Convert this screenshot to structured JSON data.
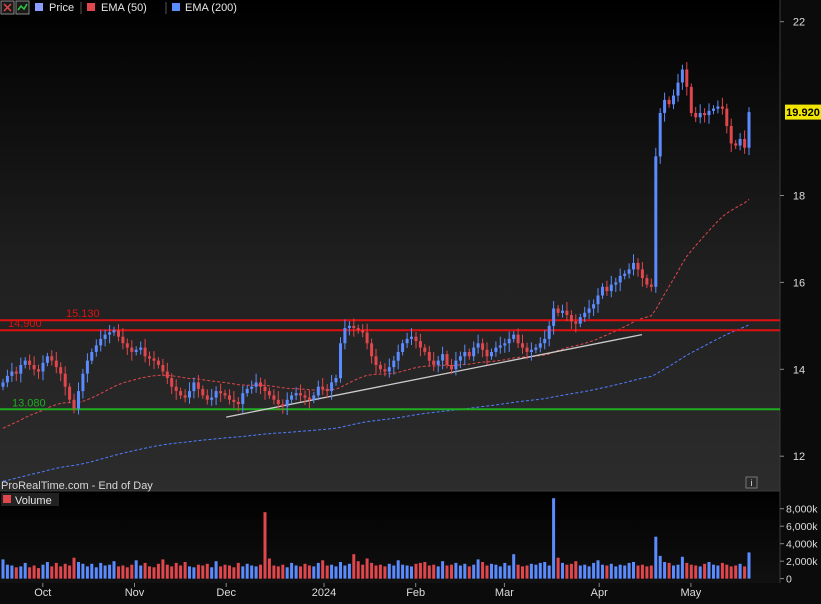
{
  "chart_data": [
    {
      "type": "candlestick",
      "panel": "price",
      "legend": {
        "price_label": "Price",
        "ema50_label": "EMA (50)",
        "ema200_label": "EMA (200)"
      },
      "colors": {
        "up": "#5b8cff",
        "down": "#e0474c",
        "ema50": "#e0474c",
        "ema200": "#4f7dff",
        "resistance": "#e01010",
        "support": "#1fae1f",
        "trendline": "#cccccc",
        "price_tag": "#f2e600"
      },
      "ylim": [
        11.2,
        22.5
      ],
      "yticks": [
        "12",
        "14",
        "16",
        "18",
        "22"
      ],
      "last_price": "19.920",
      "levels": [
        {
          "label": "15.130",
          "value": 15.13,
          "color": "#e01010"
        },
        {
          "label": "14.900",
          "value": 14.9,
          "color": "#e01010"
        },
        {
          "label": "13.080",
          "value": 13.08,
          "color": "#1fae1f"
        }
      ],
      "trendline": {
        "from": [
          "2023-12-01",
          12.9
        ],
        "to": [
          "2024-04-15",
          14.8
        ]
      },
      "x_axis": {
        "start": "2023-09-18",
        "end": "2024-05-21",
        "labels": [
          {
            "text": "Oct",
            "date": "2023-10-02"
          },
          {
            "text": "Nov",
            "date": "2023-11-01"
          },
          {
            "text": "Dec",
            "date": "2023-12-01"
          },
          {
            "text": "2024",
            "date": "2024-01-02"
          },
          {
            "text": "Feb",
            "date": "2024-02-01"
          },
          {
            "text": "Mar",
            "date": "2024-03-01"
          },
          {
            "text": "Apr",
            "date": "2024-04-01"
          },
          {
            "text": "May",
            "date": "2024-05-01"
          }
        ]
      },
      "closes": [
        13.7,
        13.85,
        13.95,
        13.9,
        14.1,
        14.2,
        14.1,
        14.0,
        13.95,
        14.15,
        14.3,
        14.2,
        14.05,
        13.9,
        13.6,
        13.3,
        13.1,
        13.5,
        13.9,
        14.2,
        14.4,
        14.55,
        14.7,
        14.8,
        14.85,
        14.9,
        14.75,
        14.6,
        14.5,
        14.4,
        14.45,
        14.5,
        14.3,
        14.25,
        14.2,
        14.1,
        13.95,
        13.8,
        13.6,
        13.5,
        13.4,
        13.35,
        13.5,
        13.7,
        13.55,
        13.4,
        13.3,
        13.35,
        13.5,
        13.45,
        13.4,
        13.3,
        13.25,
        13.2,
        13.45,
        13.55,
        13.6,
        13.7,
        13.6,
        13.5,
        13.4,
        13.3,
        13.2,
        13.15,
        13.3,
        13.4,
        13.45,
        13.4,
        13.35,
        13.3,
        13.4,
        13.6,
        13.55,
        13.5,
        13.7,
        13.8,
        14.6,
        14.95,
        15.0,
        14.95,
        14.9,
        14.85,
        14.6,
        14.3,
        14.1,
        14.0,
        13.95,
        14.05,
        14.2,
        14.4,
        14.6,
        14.7,
        14.75,
        14.65,
        14.5,
        14.4,
        14.2,
        14.1,
        14.2,
        14.35,
        14.1,
        14.0,
        14.2,
        14.3,
        14.4,
        14.3,
        14.5,
        14.6,
        14.45,
        14.3,
        14.4,
        14.5,
        14.55,
        14.6,
        14.7,
        14.8,
        14.6,
        14.5,
        14.4,
        14.45,
        14.5,
        14.6,
        14.7,
        15.0,
        15.4,
        15.3,
        15.35,
        15.25,
        15.1,
        15.05,
        15.2,
        15.3,
        15.4,
        15.5,
        15.7,
        15.9,
        15.8,
        15.95,
        16.0,
        16.15,
        16.2,
        16.3,
        16.45,
        16.3,
        16.1,
        15.95,
        15.9,
        18.9,
        19.9,
        20.2,
        20.1,
        20.3,
        20.6,
        20.9,
        20.5,
        19.9,
        19.8,
        19.9,
        19.85,
        19.95,
        20.0,
        20.05,
        20.0,
        19.6,
        19.2,
        19.15,
        19.3,
        19.1,
        19.92
      ],
      "volumes": [
        2.2,
        1.6,
        1.5,
        1.3,
        1.4,
        1.8,
        1.3,
        1.5,
        1.2,
        1.6,
        1.9,
        1.4,
        1.8,
        1.4,
        1.7,
        1.5,
        2.4,
        1.9,
        1.7,
        1.4,
        1.7,
        1.3,
        1.8,
        1.5,
        1.6,
        2.0,
        1.4,
        1.5,
        1.3,
        1.6,
        2.1,
        1.5,
        1.8,
        1.4,
        1.3,
        1.7,
        2.2,
        1.6,
        1.4,
        1.8,
        1.5,
        1.9,
        1.4,
        1.3,
        1.6,
        1.5,
        1.7,
        1.3,
        2.0,
        1.4,
        1.6,
        1.5,
        1.3,
        1.8,
        1.4,
        1.7,
        1.5,
        1.4,
        1.6,
        7.6,
        2.3,
        1.5,
        1.4,
        1.6,
        1.3,
        1.8,
        1.5,
        1.4,
        1.7,
        1.5,
        1.4,
        1.8,
        2.1,
        1.5,
        1.6,
        1.4,
        1.9,
        1.5,
        1.7,
        2.8,
        2.0,
        1.6,
        2.3,
        1.8,
        1.5,
        1.6,
        1.4,
        1.7,
        1.5,
        2.1,
        1.6,
        1.5,
        1.4,
        1.7,
        1.8,
        1.9,
        1.5,
        1.6,
        1.4,
        2.0,
        1.5,
        1.6,
        1.8,
        1.5,
        1.7,
        1.4,
        1.6,
        2.2,
        1.9,
        1.5,
        1.7,
        1.6,
        1.4,
        1.8,
        1.5,
        2.8,
        1.6,
        1.4,
        1.5,
        1.7,
        1.6,
        1.8,
        1.9,
        1.5,
        9.2,
        2.4,
        1.8,
        1.6,
        1.7,
        2.0,
        1.5,
        1.6,
        1.4,
        1.8,
        2.1,
        1.6,
        1.5,
        1.7,
        1.4,
        1.6,
        1.5,
        1.8,
        1.9,
        1.5,
        1.6,
        1.4,
        1.5,
        4.8,
        2.6,
        1.9,
        1.8,
        1.5,
        1.6,
        2.5,
        1.8,
        1.6,
        1.5,
        1.4,
        1.7,
        1.9,
        1.6,
        1.5,
        1.8,
        1.6,
        1.4,
        1.5,
        1.7,
        1.4,
        3.0
      ]
    },
    {
      "type": "bar",
      "panel": "volume",
      "legend": {
        "volume_label": "Volume"
      },
      "ylim": [
        -0.5,
        9.8
      ],
      "yticks": [
        "8,000k",
        "6,000k",
        "4,000k",
        "2,000k",
        "0"
      ]
    }
  ],
  "footer": {
    "source": "ProRealTime.com - End of Day",
    "info_icon": "i"
  }
}
